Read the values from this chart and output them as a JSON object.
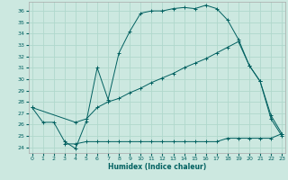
{
  "xlabel": "Humidex (Indice chaleur)",
  "bg_color": "#cce8e0",
  "grid_color": "#b0d8cc",
  "line_color": "#006060",
  "ylim": [
    23.5,
    36.8
  ],
  "xlim": [
    -0.3,
    23.3
  ],
  "ytick_vals": [
    24,
    25,
    26,
    27,
    28,
    29,
    30,
    31,
    32,
    33,
    34,
    35,
    36
  ],
  "xtick_vals": [
    0,
    1,
    2,
    3,
    4,
    5,
    6,
    7,
    8,
    9,
    10,
    11,
    12,
    13,
    14,
    15,
    16,
    17,
    18,
    19,
    20,
    21,
    22,
    23
  ],
  "line1_x": [
    0,
    1,
    2,
    3,
    4,
    5,
    6,
    7,
    8,
    9,
    10,
    11,
    12,
    13,
    14,
    15,
    16,
    17,
    18,
    19,
    20,
    21,
    22,
    23
  ],
  "line1_y": [
    27.5,
    26.2,
    26.2,
    24.5,
    23.9,
    26.3,
    31.0,
    28.2,
    32.3,
    34.2,
    35.8,
    36.0,
    36.0,
    36.2,
    36.3,
    36.2,
    36.5,
    36.2,
    35.2,
    33.5,
    31.2,
    29.8,
    26.5,
    25.0
  ],
  "line2_x": [
    0,
    4,
    5,
    6,
    7,
    8,
    9,
    10,
    11,
    12,
    13,
    14,
    15,
    16,
    17,
    18,
    19,
    20,
    21,
    22,
    23
  ],
  "line2_y": [
    27.5,
    26.2,
    26.5,
    27.5,
    28.0,
    28.3,
    28.8,
    29.2,
    29.7,
    30.1,
    30.5,
    31.0,
    31.4,
    31.8,
    32.3,
    32.8,
    33.3,
    31.2,
    29.8,
    26.8,
    25.2
  ],
  "line3_x": [
    3,
    4,
    5,
    6,
    7,
    8,
    9,
    10,
    11,
    12,
    13,
    14,
    15,
    16,
    17,
    18,
    19,
    20,
    21,
    22,
    23
  ],
  "line3_y": [
    24.3,
    24.3,
    24.5,
    24.5,
    24.5,
    24.5,
    24.5,
    24.5,
    24.5,
    24.5,
    24.5,
    24.5,
    24.5,
    24.5,
    24.5,
    24.8,
    24.8,
    24.8,
    24.8,
    24.8,
    25.2
  ]
}
